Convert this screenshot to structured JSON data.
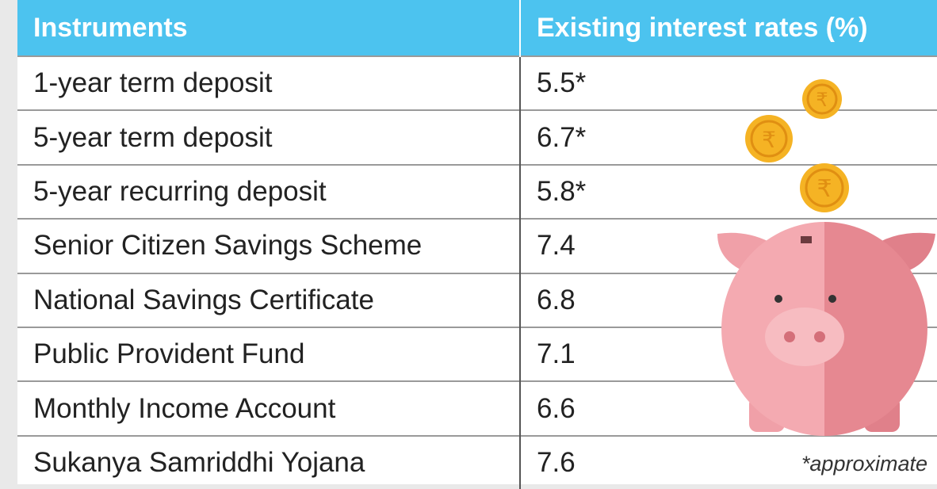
{
  "table": {
    "header": [
      "Instruments",
      "Existing interest rates (%)"
    ],
    "rows": [
      [
        "1-year term deposit",
        "5.5*"
      ],
      [
        "5-year term deposit",
        "6.7*"
      ],
      [
        "5-year recurring deposit",
        "5.8*"
      ],
      [
        "Senior Citizen Savings Scheme",
        "7.4"
      ],
      [
        "National Savings Certificate",
        "6.8"
      ],
      [
        "Public Provident Fund",
        "7.1"
      ],
      [
        "Monthly Income Account",
        "6.6"
      ],
      [
        "Sukanya Samriddhi Yojana",
        "7.6"
      ]
    ]
  },
  "footnote": "*approximate"
}
